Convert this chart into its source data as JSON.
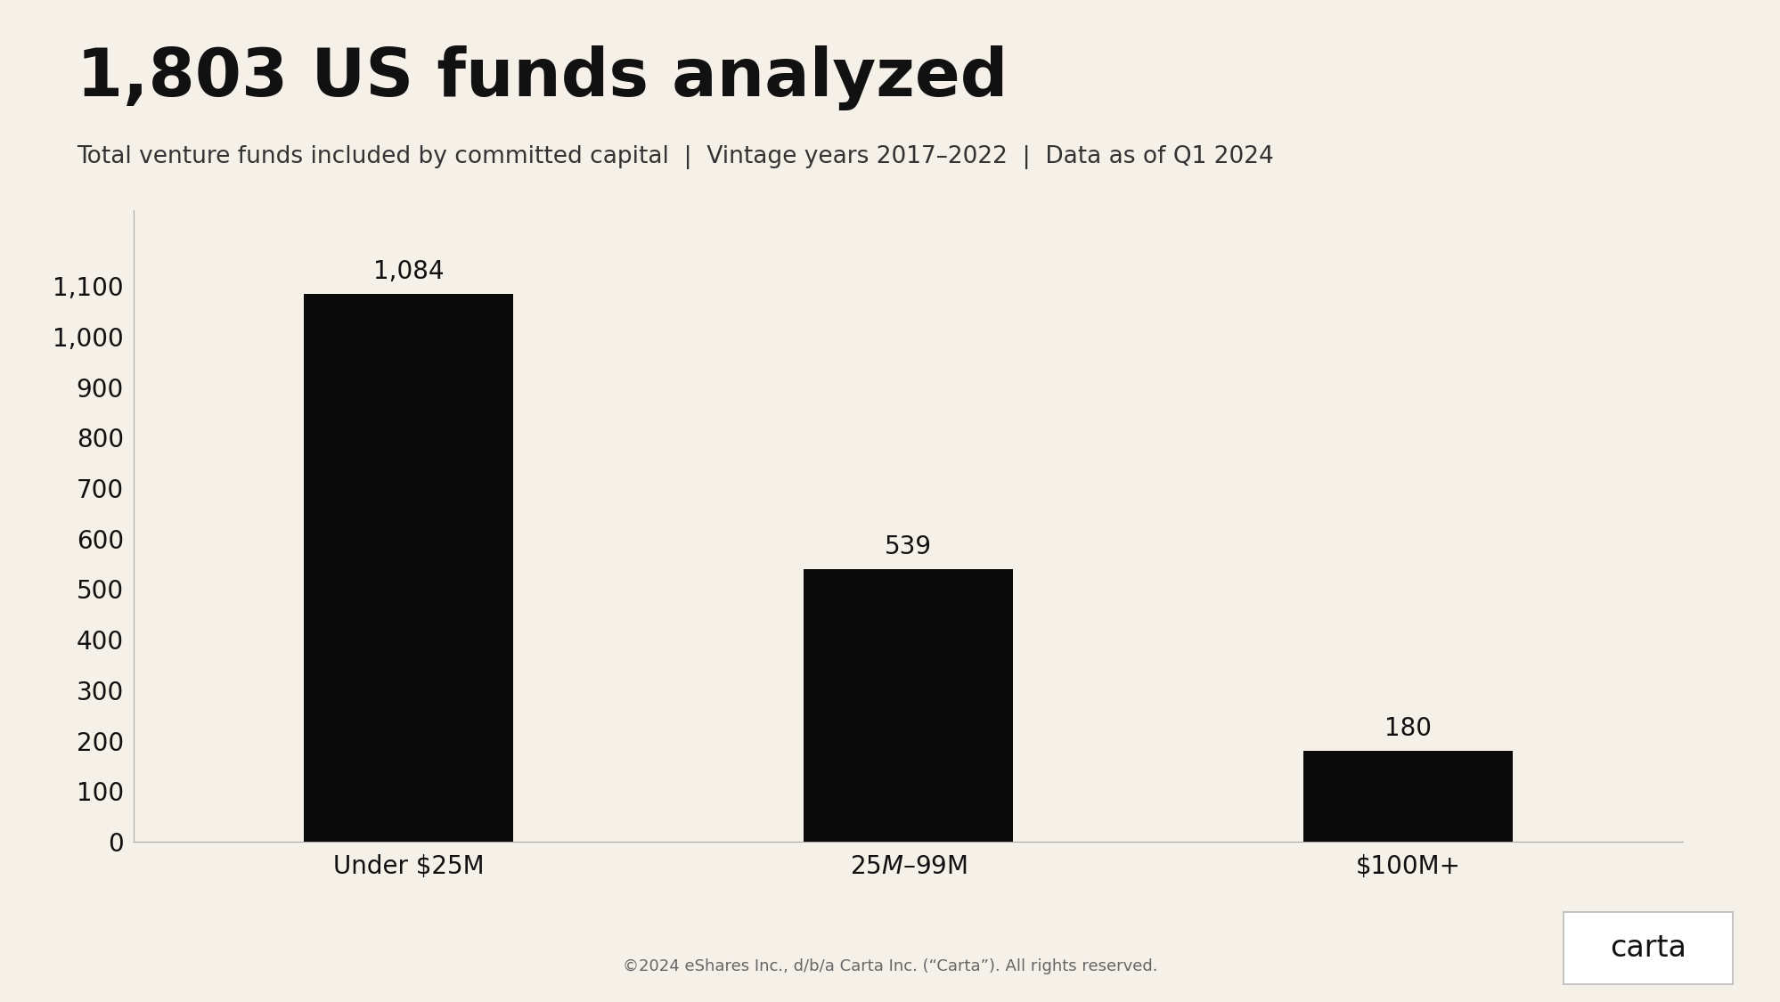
{
  "title": "1,803 US funds analyzed",
  "subtitle": "Total venture funds included by committed capital  |  Vintage years 2017–2022  |  Data as of Q1 2024",
  "categories": [
    "Under $25M",
    "$25M–$99M",
    "$100M+"
  ],
  "values": [
    1084,
    539,
    180
  ],
  "bar_labels": [
    "1,084",
    "539",
    "180"
  ],
  "bar_color": "#0a0a0a",
  "background_color": "#f5f0e8",
  "title_fontsize": 54,
  "subtitle_fontsize": 19,
  "yticks": [
    0,
    100,
    200,
    300,
    400,
    500,
    600,
    700,
    800,
    900,
    1000,
    1100
  ],
  "ytick_labels": [
    "0",
    "100",
    "200",
    "300",
    "400",
    "500",
    "600",
    "700",
    "800",
    "900",
    "1,000",
    "1,100"
  ],
  "ylim": [
    0,
    1250
  ],
  "footer": "©2024 eShares Inc., d/b/a Carta Inc. (“Carta”). All rights reserved.",
  "logo_text": "carta",
  "tick_fontsize": 20,
  "label_fontsize": 20,
  "bar_width": 0.42
}
